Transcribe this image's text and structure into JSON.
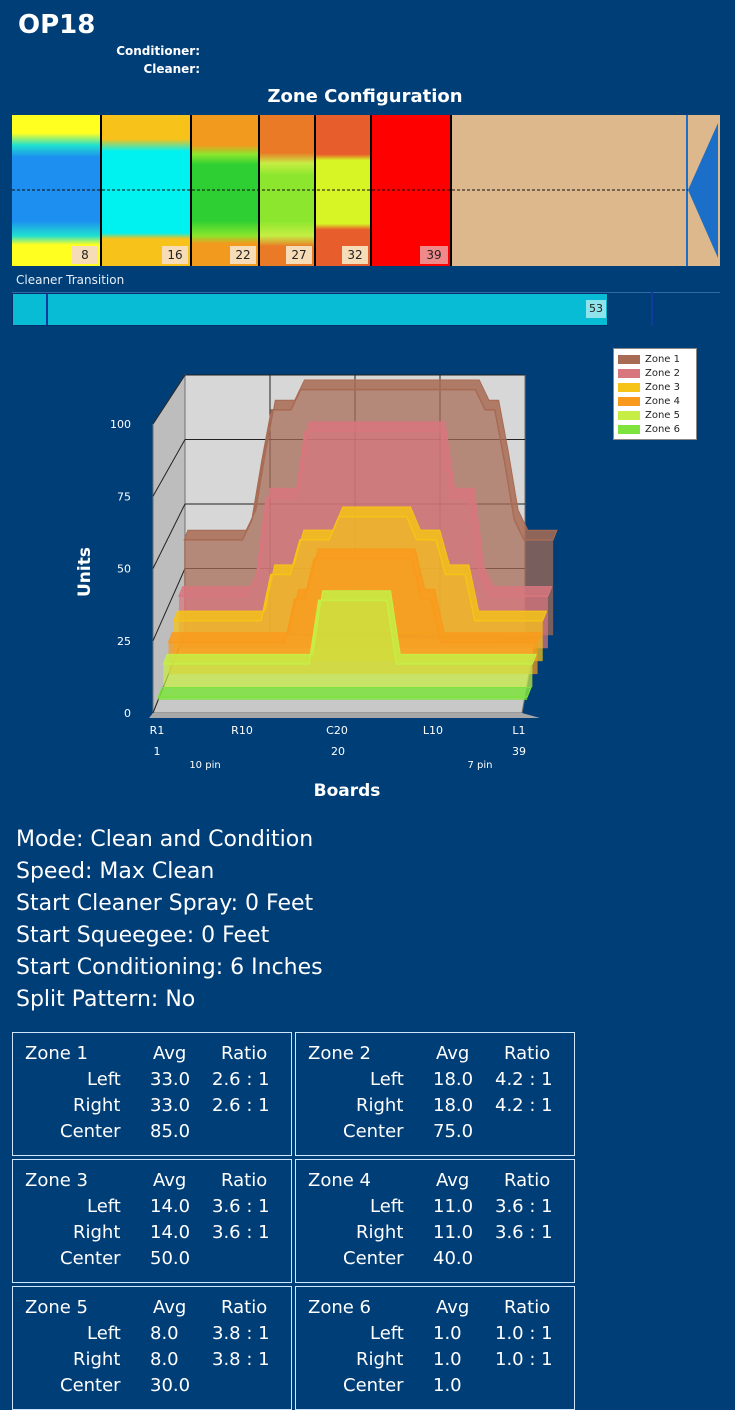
{
  "page": {
    "title": "OP18",
    "conditioner_label": "Conditioner:",
    "cleaner_label": "Cleaner:"
  },
  "zone_config": {
    "title": "Zone Configuration",
    "zone_ends": [
      "8",
      "16",
      "22",
      "27",
      "32",
      "39"
    ],
    "zone_colors": [
      "#1c8ff0",
      "#00f2f0",
      "#2ecf33",
      "#8be62d",
      "#d7f424",
      "#ff0000"
    ],
    "lane_color": "#ddb88c"
  },
  "cleaner": {
    "label": "Cleaner Transition",
    "value": "53",
    "color": "#08bcd6"
  },
  "chart_data": {
    "type": "area",
    "xlabel": "Boards",
    "ylabel": "Units",
    "ylim": [
      0,
      100
    ],
    "yticks": [
      "0",
      "25",
      "50",
      "75",
      "100"
    ],
    "x_tick_labels": [
      "R1",
      "R10",
      "C20",
      "L10",
      "L1"
    ],
    "x_tick_numbers": [
      "1",
      "20",
      "39"
    ],
    "pin_labels": [
      "10 pin",
      "7 pin"
    ],
    "x": [
      1,
      2,
      3,
      4,
      5,
      6,
      7,
      8,
      9,
      10,
      11,
      12,
      13,
      14,
      15,
      16,
      17,
      18,
      19,
      20,
      21,
      22,
      23,
      24,
      25,
      26,
      27,
      28,
      29,
      30,
      31,
      32,
      33,
      34,
      35,
      36,
      37,
      38,
      39
    ],
    "series": [
      {
        "name": "Zone 1",
        "color": "#a86b54",
        "values": [
          33,
          33,
          33,
          33,
          33,
          33,
          33,
          40,
          60,
          78,
          78,
          78,
          85,
          85,
          85,
          85,
          85,
          85,
          85,
          85,
          85,
          85,
          85,
          85,
          85,
          85,
          85,
          85,
          85,
          85,
          85,
          78,
          78,
          60,
          40,
          33,
          33,
          33,
          33
        ]
      },
      {
        "name": "Zone 2",
        "color": "#d8767e",
        "values": [
          18,
          18,
          18,
          18,
          18,
          18,
          18,
          18,
          25,
          52,
          52,
          52,
          52,
          75,
          75,
          75,
          75,
          75,
          75,
          75,
          75,
          75,
          75,
          75,
          75,
          75,
          75,
          75,
          52,
          52,
          52,
          25,
          18,
          18,
          18,
          18,
          18,
          18,
          18
        ]
      },
      {
        "name": "Zone 3",
        "color": "#f5c416",
        "values": [
          14,
          14,
          14,
          14,
          14,
          14,
          14,
          14,
          14,
          14,
          30,
          30,
          30,
          42,
          42,
          42,
          42,
          50,
          50,
          50,
          50,
          50,
          50,
          50,
          50,
          42,
          42,
          42,
          30,
          30,
          30,
          14,
          14,
          14,
          14,
          14,
          14,
          14,
          14
        ]
      },
      {
        "name": "Zone 4",
        "color": "#f99a1c",
        "values": [
          11,
          11,
          11,
          11,
          11,
          11,
          11,
          11,
          11,
          11,
          11,
          11,
          11,
          26,
          26,
          40,
          40,
          40,
          40,
          40,
          40,
          40,
          40,
          40,
          40,
          40,
          26,
          26,
          11,
          11,
          11,
          11,
          11,
          11,
          11,
          11,
          11,
          11,
          11
        ]
      },
      {
        "name": "Zone 5",
        "color": "#c6ee44",
        "values": [
          8,
          8,
          8,
          8,
          8,
          8,
          8,
          8,
          8,
          8,
          8,
          8,
          8,
          8,
          8,
          8,
          30,
          30,
          30,
          30,
          30,
          30,
          30,
          30,
          8,
          8,
          8,
          8,
          8,
          8,
          8,
          8,
          8,
          8,
          8,
          8,
          8,
          8,
          8
        ]
      },
      {
        "name": "Zone 6",
        "color": "#7ee33d",
        "values": [
          1,
          1,
          1,
          1,
          1,
          1,
          1,
          1,
          1,
          1,
          1,
          1,
          1,
          1,
          1,
          1,
          1,
          1,
          1,
          1,
          1,
          1,
          1,
          1,
          1,
          1,
          1,
          1,
          1,
          1,
          1,
          1,
          1,
          1,
          1,
          1,
          1,
          1,
          1
        ]
      }
    ],
    "legend_position": "top-right",
    "grid": true
  },
  "settings": [
    "Mode: Clean and Condition",
    "Speed: Max Clean",
    "Start Cleaner Spray: 0 Feet",
    "Start Squeegee: 0 Feet",
    "Start Conditioning: 6 Inches",
    "Split Pattern: No"
  ],
  "zone_tables": [
    {
      "name": "Zone 1",
      "avg_header": "Avg",
      "ratio_header": "Ratio",
      "left_label": "Left",
      "right_label": "Right",
      "center_label": "Center",
      "left_avg": "33.0",
      "left_ratio": "2.6 : 1",
      "right_avg": "33.0",
      "right_ratio": "2.6 : 1",
      "center_avg": "85.0"
    },
    {
      "name": "Zone 2",
      "avg_header": "Avg",
      "ratio_header": "Ratio",
      "left_label": "Left",
      "right_label": "Right",
      "center_label": "Center",
      "left_avg": "18.0",
      "left_ratio": "4.2 : 1",
      "right_avg": "18.0",
      "right_ratio": "4.2 : 1",
      "center_avg": "75.0"
    },
    {
      "name": "Zone 3",
      "avg_header": "Avg",
      "ratio_header": "Ratio",
      "left_label": "Left",
      "right_label": "Right",
      "center_label": "Center",
      "left_avg": "14.0",
      "left_ratio": "3.6 : 1",
      "right_avg": "14.0",
      "right_ratio": "3.6 : 1",
      "center_avg": "50.0"
    },
    {
      "name": "Zone 4",
      "avg_header": "Avg",
      "ratio_header": "Ratio",
      "left_label": "Left",
      "right_label": "Right",
      "center_label": "Center",
      "left_avg": "11.0",
      "left_ratio": "3.6 : 1",
      "right_avg": "11.0",
      "right_ratio": "3.6 : 1",
      "center_avg": "40.0"
    },
    {
      "name": "Zone 5",
      "avg_header": "Avg",
      "ratio_header": "Ratio",
      "left_label": "Left",
      "right_label": "Right",
      "center_label": "Center",
      "left_avg": "8.0",
      "left_ratio": "3.8 : 1",
      "right_avg": "8.0",
      "right_ratio": "3.8 : 1",
      "center_avg": "30.0"
    },
    {
      "name": "Zone 6",
      "avg_header": "Avg",
      "ratio_header": "Ratio",
      "left_label": "Left",
      "right_label": "Right",
      "center_label": "Center",
      "left_avg": "1.0",
      "left_ratio": "1.0 : 1",
      "right_avg": "1.0",
      "right_ratio": "1.0 : 1",
      "center_avg": "1.0"
    }
  ]
}
